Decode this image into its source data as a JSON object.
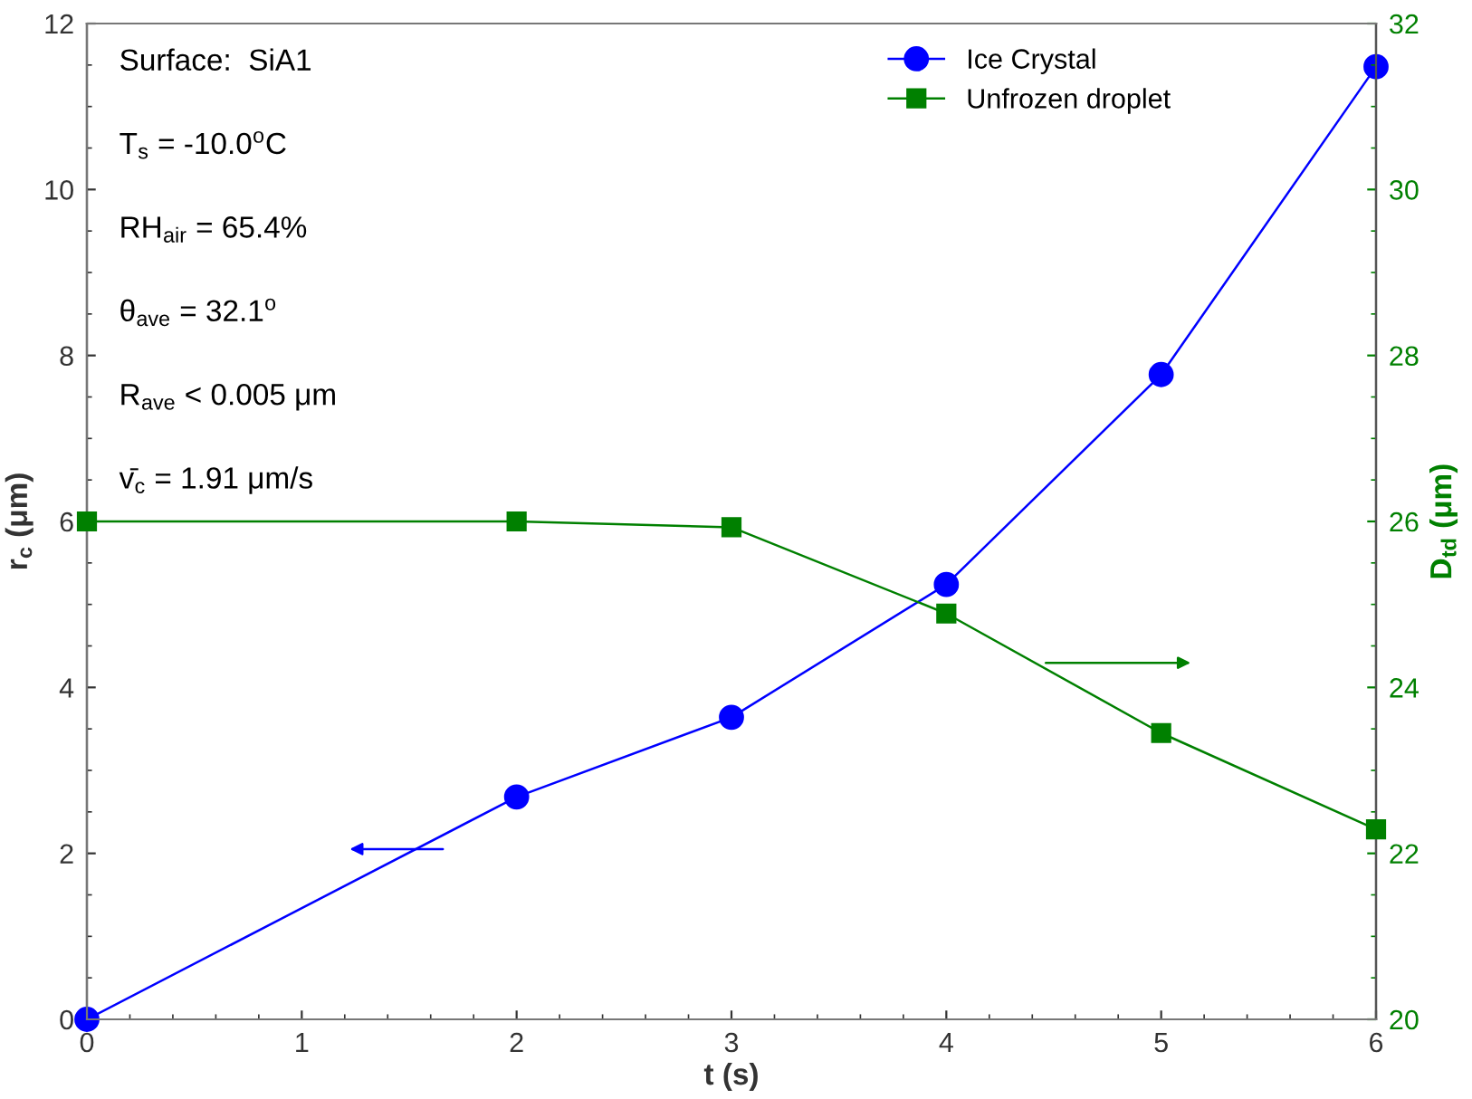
{
  "chart_data": {
    "type": "line",
    "xlabel": "t (s)",
    "ylabel": "r$_{c}$ (μm)",
    "y2label": "D$_{td}$ (μm)",
    "x": [
      0,
      2,
      3,
      4,
      5,
      6
    ],
    "series": [
      {
        "name": "Ice Crystal",
        "color": "#0000ff",
        "marker": "circle",
        "values": [
          0,
          2.68,
          3.64,
          5.24,
          7.77,
          11.48
        ]
      },
      {
        "name": "Unfrozen droplet",
        "color": "#008000",
        "marker": "square",
        "axis": "y2",
        "values": [
          26.0,
          26.0,
          25.93,
          24.89,
          23.45,
          22.29
        ]
      }
    ],
    "xlim": [
      0,
      6
    ],
    "xticks": [
      0,
      1,
      2,
      3,
      4,
      5,
      6
    ],
    "ylim": [
      0,
      12
    ],
    "yticks": [
      0,
      2,
      4,
      6,
      8,
      10,
      12
    ],
    "y2lim": [
      20,
      32
    ],
    "y2ticks": [
      20,
      22,
      24,
      26,
      28,
      30,
      32
    ],
    "legend": "top right",
    "grid": false,
    "annotations": [
      "Surface:  SiA1",
      "T$_{s}$ = -10.0$^{o}$C",
      "RH$_{air}$ = 65.4%",
      "θ$_{ave}$ = 32.1$^{o}$",
      "R$_{ave}$ < 0.005 μm",
      "v̄$_{c}$ = 1.91 μm/s"
    ]
  }
}
